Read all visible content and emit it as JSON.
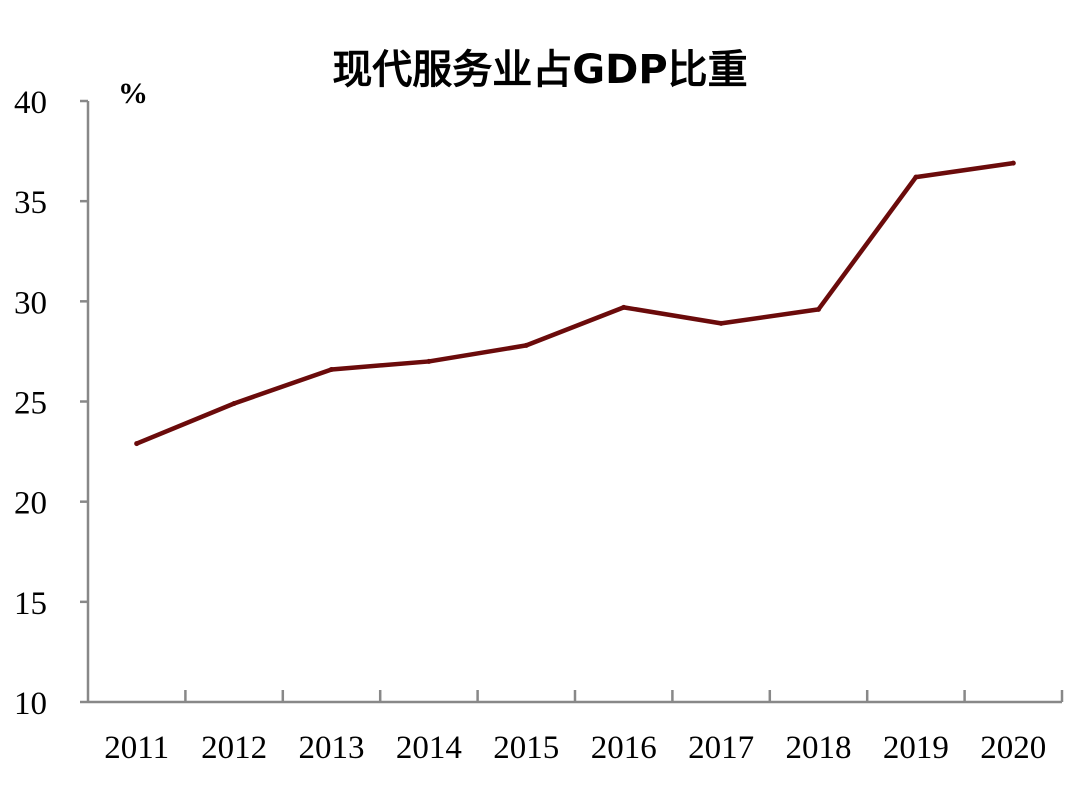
{
  "chart_data": {
    "type": "line",
    "title": "现代服务业占GDP比重",
    "ylabel": "%",
    "xlabel": "",
    "categories": [
      "2011",
      "2012",
      "2013",
      "2014",
      "2015",
      "2016",
      "2017",
      "2018",
      "2019",
      "2020"
    ],
    "series": [
      {
        "values": [
          22.9,
          24.9,
          26.6,
          27.0,
          27.8,
          29.7,
          28.9,
          29.6,
          36.2,
          36.9
        ],
        "color": "#6b0b0b"
      }
    ],
    "ylim": [
      10,
      40
    ],
    "yticks": [
      10,
      15,
      20,
      25,
      30,
      35,
      40
    ],
    "grid": false,
    "legend": "none"
  }
}
